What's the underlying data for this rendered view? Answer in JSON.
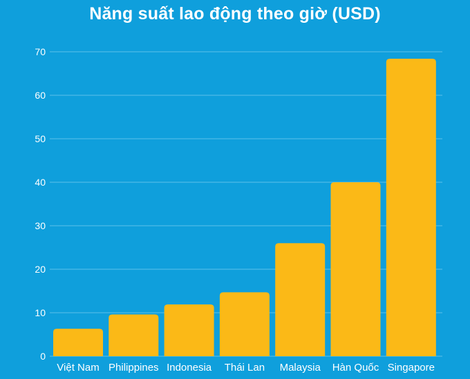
{
  "chart_data": {
    "type": "bar",
    "title": "Năng suất lao động theo giờ (USD)",
    "xlabel": "",
    "ylabel": "",
    "categories": [
      "Việt Nam",
      "Philippines",
      "Indonesia",
      "Thái Lan",
      "Malaysia",
      "Hàn Quốc",
      "Singapore"
    ],
    "values": [
      6.3,
      9.6,
      11.9,
      14.7,
      26.0,
      40.0,
      68.4
    ],
    "ylim": [
      0,
      70
    ],
    "yticks": [
      0,
      10,
      20,
      30,
      40,
      50,
      60,
      70
    ],
    "grid": true,
    "legend": "none",
    "colors": {
      "background": "#0f9fdc",
      "bar": "#fbb917",
      "grid": "#5cc0ea",
      "text": "#ffffff"
    }
  }
}
